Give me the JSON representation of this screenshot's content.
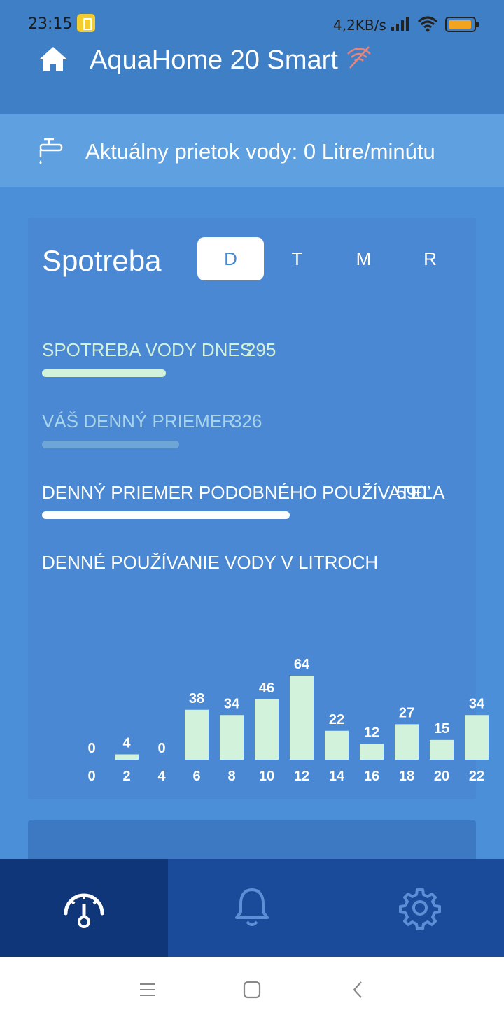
{
  "status_bar": {
    "time": "23:15",
    "net_speed": "4,2KB/s",
    "icons": [
      "battery-saver-icon",
      "signal-icon",
      "wifi-icon",
      "battery-icon"
    ],
    "battery_color": "#f2a31f"
  },
  "app_bar": {
    "title": "AquaHome 20 Smart",
    "icons": [
      "home-icon",
      "wifi-off-icon"
    ]
  },
  "flow": {
    "text": "Aktuálny prietok vody: 0 Litre/minútu",
    "icon": "tap-icon"
  },
  "consumption": {
    "title": "Spotreba",
    "tabs": [
      {
        "label": "D",
        "active": true
      },
      {
        "label": "T",
        "active": false
      },
      {
        "label": "M",
        "active": false
      },
      {
        "label": "R",
        "active": false
      }
    ],
    "metrics": [
      {
        "label": "SPOTREBA VODY DNES",
        "value": "295",
        "color": "#d2f2dc"
      },
      {
        "label": "VÁŠ DENNÝ PRIEMER",
        "value": "326",
        "color": "#a8d4ea"
      },
      {
        "label": "DENNÝ PRIEMER PODOBNÉHO POUŽÍVATEĽA",
        "value": "590",
        "color": "#ffffff"
      }
    ],
    "bar_fractions": [
      0.5,
      0.553,
      1.0
    ]
  },
  "chart_data": {
    "type": "bar",
    "title": "DENNÉ POUŽÍVANIE VODY V LITROCH",
    "categories": [
      "0",
      "2",
      "4",
      "6",
      "8",
      "10",
      "12",
      "14",
      "16",
      "18",
      "20",
      "22"
    ],
    "values": [
      0,
      4,
      0,
      38,
      34,
      46,
      64,
      22,
      12,
      27,
      15,
      34
    ],
    "bar_color": "#d2f2dc"
  },
  "bottom_nav": {
    "items": [
      {
        "icon": "gauge-icon",
        "active": true
      },
      {
        "icon": "bell-icon",
        "active": false
      },
      {
        "icon": "gear-icon",
        "active": false
      }
    ]
  },
  "system_nav": {
    "icons": [
      "menu-icon",
      "home-square-icon",
      "back-icon"
    ]
  }
}
